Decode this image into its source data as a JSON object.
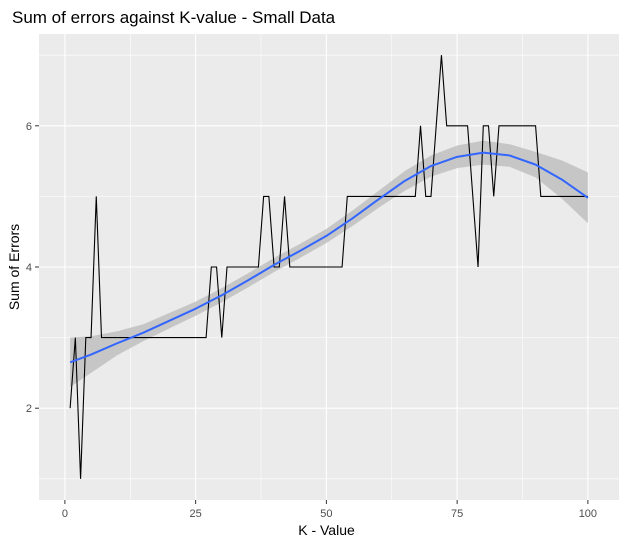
{
  "chart_data": {
    "type": "line",
    "title": "Sum of errors against K-value - Small Data",
    "xlabel": "K - Value",
    "ylabel": "Sum of Errors",
    "xlim": [
      -4.95,
      105.95
    ],
    "ylim": [
      0.7,
      7.3
    ],
    "x_ticks": [
      0,
      25,
      50,
      75,
      100
    ],
    "y_ticks": [
      2,
      4,
      6
    ],
    "grid": true,
    "legend": "none",
    "colors": {
      "panel_background": "#ebebeb",
      "grid": "#ffffff",
      "raw_line": "#000000",
      "smooth_line": "#3366ff",
      "confidence_band": "#bfbfbf"
    },
    "series": [
      {
        "kind": "raw",
        "x": [
          1,
          2,
          3,
          4,
          5,
          6,
          7,
          8,
          9,
          10,
          11,
          12,
          13,
          14,
          15,
          16,
          17,
          18,
          19,
          20,
          21,
          22,
          23,
          24,
          25,
          26,
          27,
          28,
          29,
          30,
          31,
          32,
          33,
          34,
          35,
          36,
          37,
          38,
          39,
          40,
          41,
          42,
          43,
          44,
          45,
          46,
          47,
          48,
          49,
          50,
          51,
          52,
          53,
          54,
          55,
          56,
          57,
          58,
          59,
          60,
          61,
          62,
          63,
          64,
          65,
          66,
          67,
          68,
          69,
          70,
          71,
          72,
          73,
          74,
          75,
          76,
          77,
          78,
          79,
          80,
          81,
          82,
          83,
          84,
          85,
          86,
          87,
          88,
          89,
          90,
          91,
          92,
          93,
          94,
          95,
          96,
          97,
          98,
          99,
          100
        ],
        "y": [
          2,
          3,
          1,
          3,
          3,
          5,
          3,
          3,
          3,
          3,
          3,
          3,
          3,
          3,
          3,
          3,
          3,
          3,
          3,
          3,
          3,
          3,
          3,
          3,
          3,
          3,
          3,
          4,
          4,
          3,
          4,
          4,
          4,
          4,
          4,
          4,
          4,
          5,
          5,
          4,
          4,
          5,
          4,
          4,
          4,
          4,
          4,
          4,
          4,
          4,
          4,
          4,
          4,
          5,
          5,
          5,
          5,
          5,
          5,
          5,
          5,
          5,
          5,
          5,
          5,
          5,
          5,
          6,
          5,
          5,
          6,
          7,
          6,
          6,
          6,
          6,
          6,
          5,
          4,
          6,
          6,
          5,
          6,
          6,
          6,
          6,
          6,
          6,
          6,
          6,
          5,
          5,
          5,
          5,
          5,
          5,
          5,
          5,
          5,
          5
        ]
      },
      {
        "kind": "smooth",
        "x": [
          1,
          5,
          10,
          15,
          20,
          25,
          30,
          35,
          40,
          45,
          50,
          55,
          60,
          65,
          70,
          75,
          80,
          85,
          90,
          95,
          100
        ],
        "y": [
          2.65,
          2.76,
          2.92,
          3.07,
          3.24,
          3.41,
          3.6,
          3.81,
          4.03,
          4.23,
          4.44,
          4.69,
          4.96,
          5.22,
          5.43,
          5.56,
          5.62,
          5.58,
          5.45,
          5.24,
          4.98
        ],
        "lower": [
          2.3,
          2.5,
          2.75,
          2.95,
          3.13,
          3.31,
          3.5,
          3.71,
          3.93,
          4.13,
          4.34,
          4.58,
          4.84,
          5.08,
          5.28,
          5.4,
          5.45,
          5.42,
          5.27,
          4.97,
          4.62
        ],
        "upper": [
          3.0,
          3.02,
          3.09,
          3.19,
          3.35,
          3.51,
          3.7,
          3.91,
          4.13,
          4.33,
          4.54,
          4.8,
          5.08,
          5.36,
          5.58,
          5.72,
          5.79,
          5.74,
          5.63,
          5.51,
          5.34
        ]
      }
    ]
  }
}
